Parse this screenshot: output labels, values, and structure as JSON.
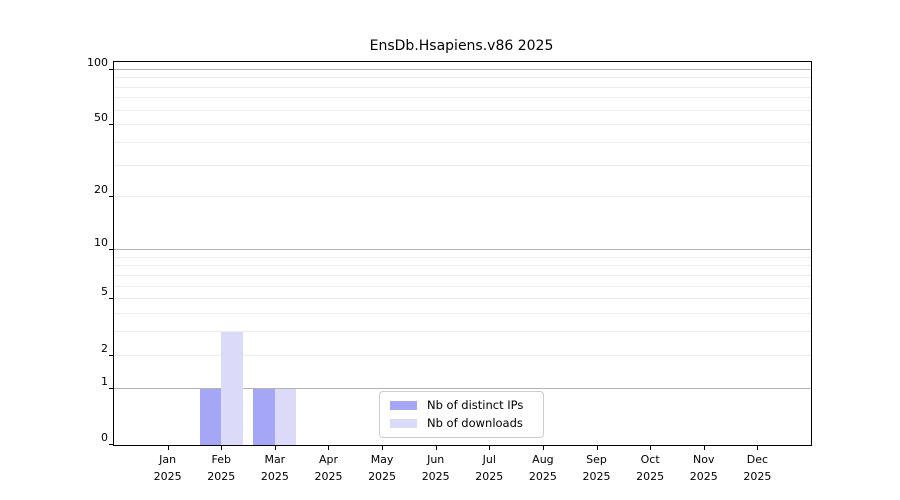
{
  "chart_data": {
    "type": "bar",
    "title": "EnsDb.Hsapiens.v86 2025",
    "categories": [
      "Jan",
      "Feb",
      "Mar",
      "Apr",
      "May",
      "Jun",
      "Jul",
      "Aug",
      "Sep",
      "Oct",
      "Nov",
      "Dec"
    ],
    "x_year": "2025",
    "series": [
      {
        "name": "Nb of distinct IPs",
        "color": "#a6a6f6",
        "values": [
          0,
          1,
          1,
          0,
          0,
          0,
          0,
          0,
          0,
          0,
          0,
          0
        ]
      },
      {
        "name": "Nb of downloads",
        "color": "#dbdbf9",
        "values": [
          0,
          3,
          1,
          0,
          0,
          0,
          0,
          0,
          0,
          0,
          0,
          0
        ]
      }
    ],
    "y_scale": "log1p",
    "ylim": [
      0,
      110
    ],
    "y_ticks": [
      0,
      1,
      2,
      5,
      10,
      20,
      50,
      100
    ],
    "major_gridlines": [
      1,
      10,
      100
    ],
    "minor_gridlines": [
      2,
      3,
      4,
      5,
      6,
      7,
      8,
      9,
      20,
      30,
      40,
      50,
      60,
      70,
      80,
      90
    ],
    "legend_position": "inside lower center",
    "colors": {
      "major_grid": "#b3b3b3",
      "minor_grid": "#ececec",
      "axis": "#000000",
      "legend_border": "#cccccc",
      "background": "#ffffff"
    }
  }
}
